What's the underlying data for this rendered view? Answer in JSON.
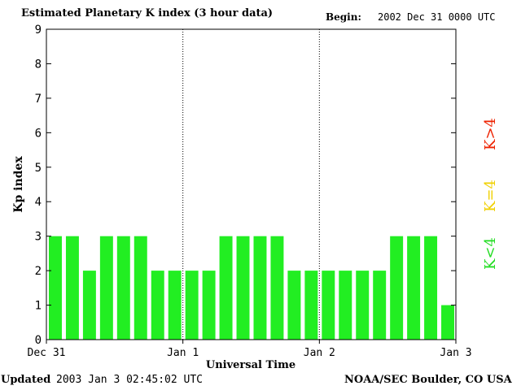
{
  "header": {
    "title": "Estimated Planetary K index (3 hour data)",
    "begin_label": "Begin:",
    "begin_value": "2002 Dec 31 0000 UTC"
  },
  "footer": {
    "updated_label": "Updated",
    "updated_value": "2003 Jan  3 02:45:02 UTC",
    "credit": "NOAA/SEC Boulder, CO USA"
  },
  "legend": [
    {
      "label": "K<4",
      "color": "#22dd22"
    },
    {
      "label": "K=4",
      "color": "#f0d000"
    },
    {
      "label": "K>4",
      "color": "#ee2200"
    }
  ],
  "chart_data": {
    "type": "bar",
    "title": "Estimated Planetary K index (3 hour data)",
    "xlabel": "Universal Time",
    "ylabel": "Kp index",
    "ylim": [
      0,
      9
    ],
    "yticks": [
      "0",
      "1",
      "2",
      "3",
      "4",
      "5",
      "6",
      "7",
      "8",
      "9"
    ],
    "xticks": [
      "Dec 31",
      "Jan 1",
      "Jan 2",
      "Jan 3"
    ],
    "values": [
      3,
      3,
      2,
      3,
      3,
      3,
      2,
      2,
      2,
      2,
      3,
      3,
      3,
      3,
      2,
      2,
      2,
      2,
      2,
      2,
      3,
      3,
      3,
      1
    ],
    "bar_color": "#22ee22",
    "day_separators": [
      "Jan 1",
      "Jan 2"
    ]
  }
}
